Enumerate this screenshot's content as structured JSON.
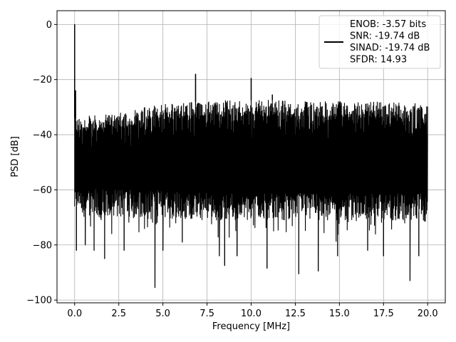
{
  "chart_data": {
    "type": "line",
    "title": "",
    "xlabel": "Frequency [MHz]",
    "ylabel": "PSD [dB]",
    "xlim": [
      -1.0,
      21.0
    ],
    "ylim": [
      -101.0,
      5.0
    ],
    "xticks": [
      0.0,
      2.5,
      5.0,
      7.5,
      10.0,
      12.5,
      15.0,
      17.5,
      20.0
    ],
    "xtick_labels": [
      "0.0",
      "2.5",
      "5.0",
      "7.5",
      "10.0",
      "12.5",
      "15.0",
      "17.5",
      "20.0"
    ],
    "yticks": [
      0,
      -20,
      -40,
      -60,
      -80,
      -100
    ],
    "ytick_labels": [
      "0",
      "−20",
      "−40",
      "−60",
      "−80",
      "−100"
    ],
    "grid": true,
    "legend_position": "top-right",
    "series": [
      {
        "name": "ENOB: -3.57 bits\nSNR: -19.74 dB\nSINAD: -19.74 dB\nSFDR: 14.93",
        "color": "#000000",
        "noise_upper_envelope": {
          "x": [
            0.0,
            0.5,
            1.0,
            2.0,
            3.0,
            4.0,
            5.0,
            6.0,
            7.0,
            8.0,
            9.0,
            10.0,
            12.0,
            15.0,
            17.5,
            20.0
          ],
          "y": [
            -34.0,
            -33.5,
            -33.0,
            -32.5,
            -31.5,
            -30.0,
            -29.0,
            -28.5,
            -28.0,
            -27.5,
            -27.5,
            -27.5,
            -27.5,
            -28.0,
            -28.0,
            -28.5
          ]
        },
        "noise_lower_envelope": {
          "x": [
            0.0,
            2.0,
            5.0,
            7.5,
            10.0,
            15.0,
            20.0
          ],
          "y": [
            -66.0,
            -66.5,
            -67.0,
            -68.0,
            -68.0,
            -68.0,
            -68.0
          ]
        },
        "peaks": [
          {
            "x": 0.0,
            "y": 0.0
          },
          {
            "x": 0.05,
            "y": -24.0
          },
          {
            "x": 6.85,
            "y": -18.0
          },
          {
            "x": 10.0,
            "y": -19.5
          },
          {
            "x": 11.2,
            "y": -25.5
          }
        ],
        "dips": [
          {
            "x": 0.1,
            "y": -82
          },
          {
            "x": 0.6,
            "y": -80
          },
          {
            "x": 1.1,
            "y": -82
          },
          {
            "x": 1.7,
            "y": -85
          },
          {
            "x": 2.8,
            "y": -82
          },
          {
            "x": 4.55,
            "y": -95.5
          },
          {
            "x": 5.0,
            "y": -82
          },
          {
            "x": 6.1,
            "y": -79
          },
          {
            "x": 8.2,
            "y": -84
          },
          {
            "x": 8.5,
            "y": -87.5
          },
          {
            "x": 9.2,
            "y": -84
          },
          {
            "x": 10.9,
            "y": -88.5
          },
          {
            "x": 12.7,
            "y": -90.5
          },
          {
            "x": 13.8,
            "y": -89.5
          },
          {
            "x": 14.9,
            "y": -84
          },
          {
            "x": 16.6,
            "y": -82
          },
          {
            "x": 17.5,
            "y": -84
          },
          {
            "x": 19.0,
            "y": -93
          },
          {
            "x": 19.5,
            "y": -84
          }
        ]
      }
    ]
  }
}
